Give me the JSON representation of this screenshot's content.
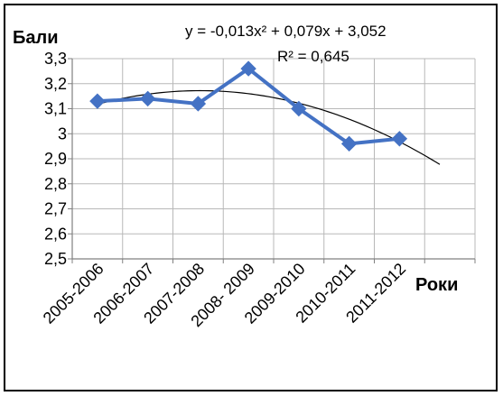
{
  "chart_data": {
    "type": "line",
    "categories": [
      "2005-2006",
      "2006-2007",
      "2007-2008",
      "2008- 2009",
      "2009-2010",
      "2010-2011",
      "2011-2012"
    ],
    "series": [
      {
        "values": [
          3.13,
          3.14,
          3.12,
          3.26,
          3.1,
          2.96,
          2.98
        ],
        "color": "#4472C4",
        "marker": "diamond"
      }
    ],
    "trendline": {
      "type": "polynomial",
      "order": 2,
      "coefficients": [
        -0.013,
        0.079,
        3.052
      ],
      "color": "#000000",
      "x_extent": [
        1,
        7.8
      ]
    },
    "equation_label": "y = -0,013x² + 0,079x + 3,052",
    "r2_label": "R² = 0,645",
    "ylabel": "Бали",
    "xlabel": "Роки",
    "ylim": [
      2.5,
      3.3
    ],
    "yticks": [
      "2,5",
      "2,6",
      "2,7",
      "2,8",
      "2,9",
      "3",
      "3,1",
      "3,2",
      "3,3"
    ],
    "grid": true,
    "legend": "none"
  }
}
